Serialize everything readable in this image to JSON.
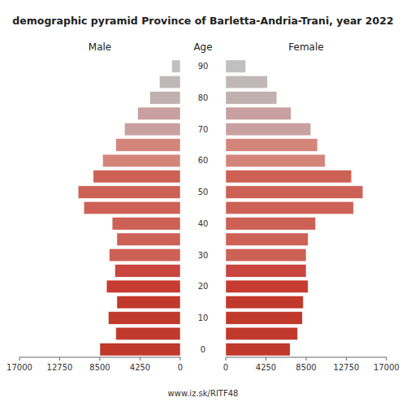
{
  "chart_data": {
    "type": "bar",
    "orientation": "horizontal",
    "title": "demographic pyramid Province of Barletta-Andria-Trani, year 2022",
    "ylabel": "Age",
    "annotations": [
      "www.iz.sk/RITF48"
    ],
    "categories": [
      "0",
      null,
      "10",
      null,
      "20",
      null,
      "30",
      null,
      "40",
      null,
      "50",
      null,
      "60",
      null,
      "70",
      null,
      "80",
      null,
      "90"
    ],
    "series": [
      {
        "name": "Male",
        "values": [
          8500,
          6800,
          7600,
          6700,
          7800,
          6900,
          7500,
          6700,
          7200,
          10200,
          10800,
          9200,
          8200,
          6800,
          5900,
          4500,
          3200,
          2200,
          900
        ],
        "colors": [
          "#c0392b",
          "#c0392b",
          "#c0392b",
          "#c0392b",
          "#c63c30",
          "#c94540",
          "#cd6155",
          "#cd6155",
          "#cd6155",
          "#cd6155",
          "#cd6155",
          "#cd6155",
          "#d4857a",
          "#d4857a",
          "#c8a0a0",
          "#c8a0a0",
          "#c0b0b0",
          "#c0b8b8",
          "#c0c0c0"
        ]
      },
      {
        "name": "Female",
        "values": [
          6800,
          7600,
          8100,
          8200,
          8700,
          8500,
          8500,
          8700,
          9500,
          13500,
          14500,
          13300,
          10500,
          9700,
          9000,
          6900,
          5400,
          4400,
          2100
        ],
        "colors": [
          "#c0392b",
          "#c0392b",
          "#c0392b",
          "#c0392b",
          "#c63c30",
          "#c94540",
          "#cd6155",
          "#cd6155",
          "#cd6155",
          "#cd6155",
          "#cd6155",
          "#cd6155",
          "#d4857a",
          "#d4857a",
          "#c8a0a0",
          "#c8a0a0",
          "#c0b0b0",
          "#c0b8b8",
          "#c0c0c0"
        ]
      }
    ],
    "xlim": [
      0,
      17000
    ],
    "xticks": [
      0,
      4250,
      8500,
      12750,
      17000
    ]
  }
}
